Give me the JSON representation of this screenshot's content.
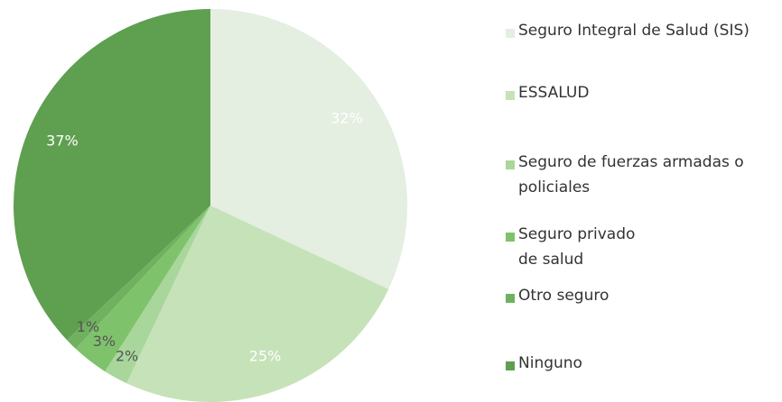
{
  "chart_data": {
    "type": "pie",
    "categories": [
      "Seguro Integral de Salud (SIS)",
      "ESSALUD",
      "Seguro de fuerzas armadas o\npoliciales",
      "Seguro privado\nde salud",
      "Otro seguro",
      "Ninguno"
    ],
    "values": [
      32,
      25,
      2,
      3,
      1,
      37
    ],
    "value_labels": [
      "32%",
      "25%",
      "2%",
      "3%",
      "1%",
      "37%"
    ],
    "colors": [
      "#e4eee1",
      "#c6e2b9",
      "#a9d69b",
      "#7fc26c",
      "#70b15f",
      "#5f9f50"
    ]
  }
}
